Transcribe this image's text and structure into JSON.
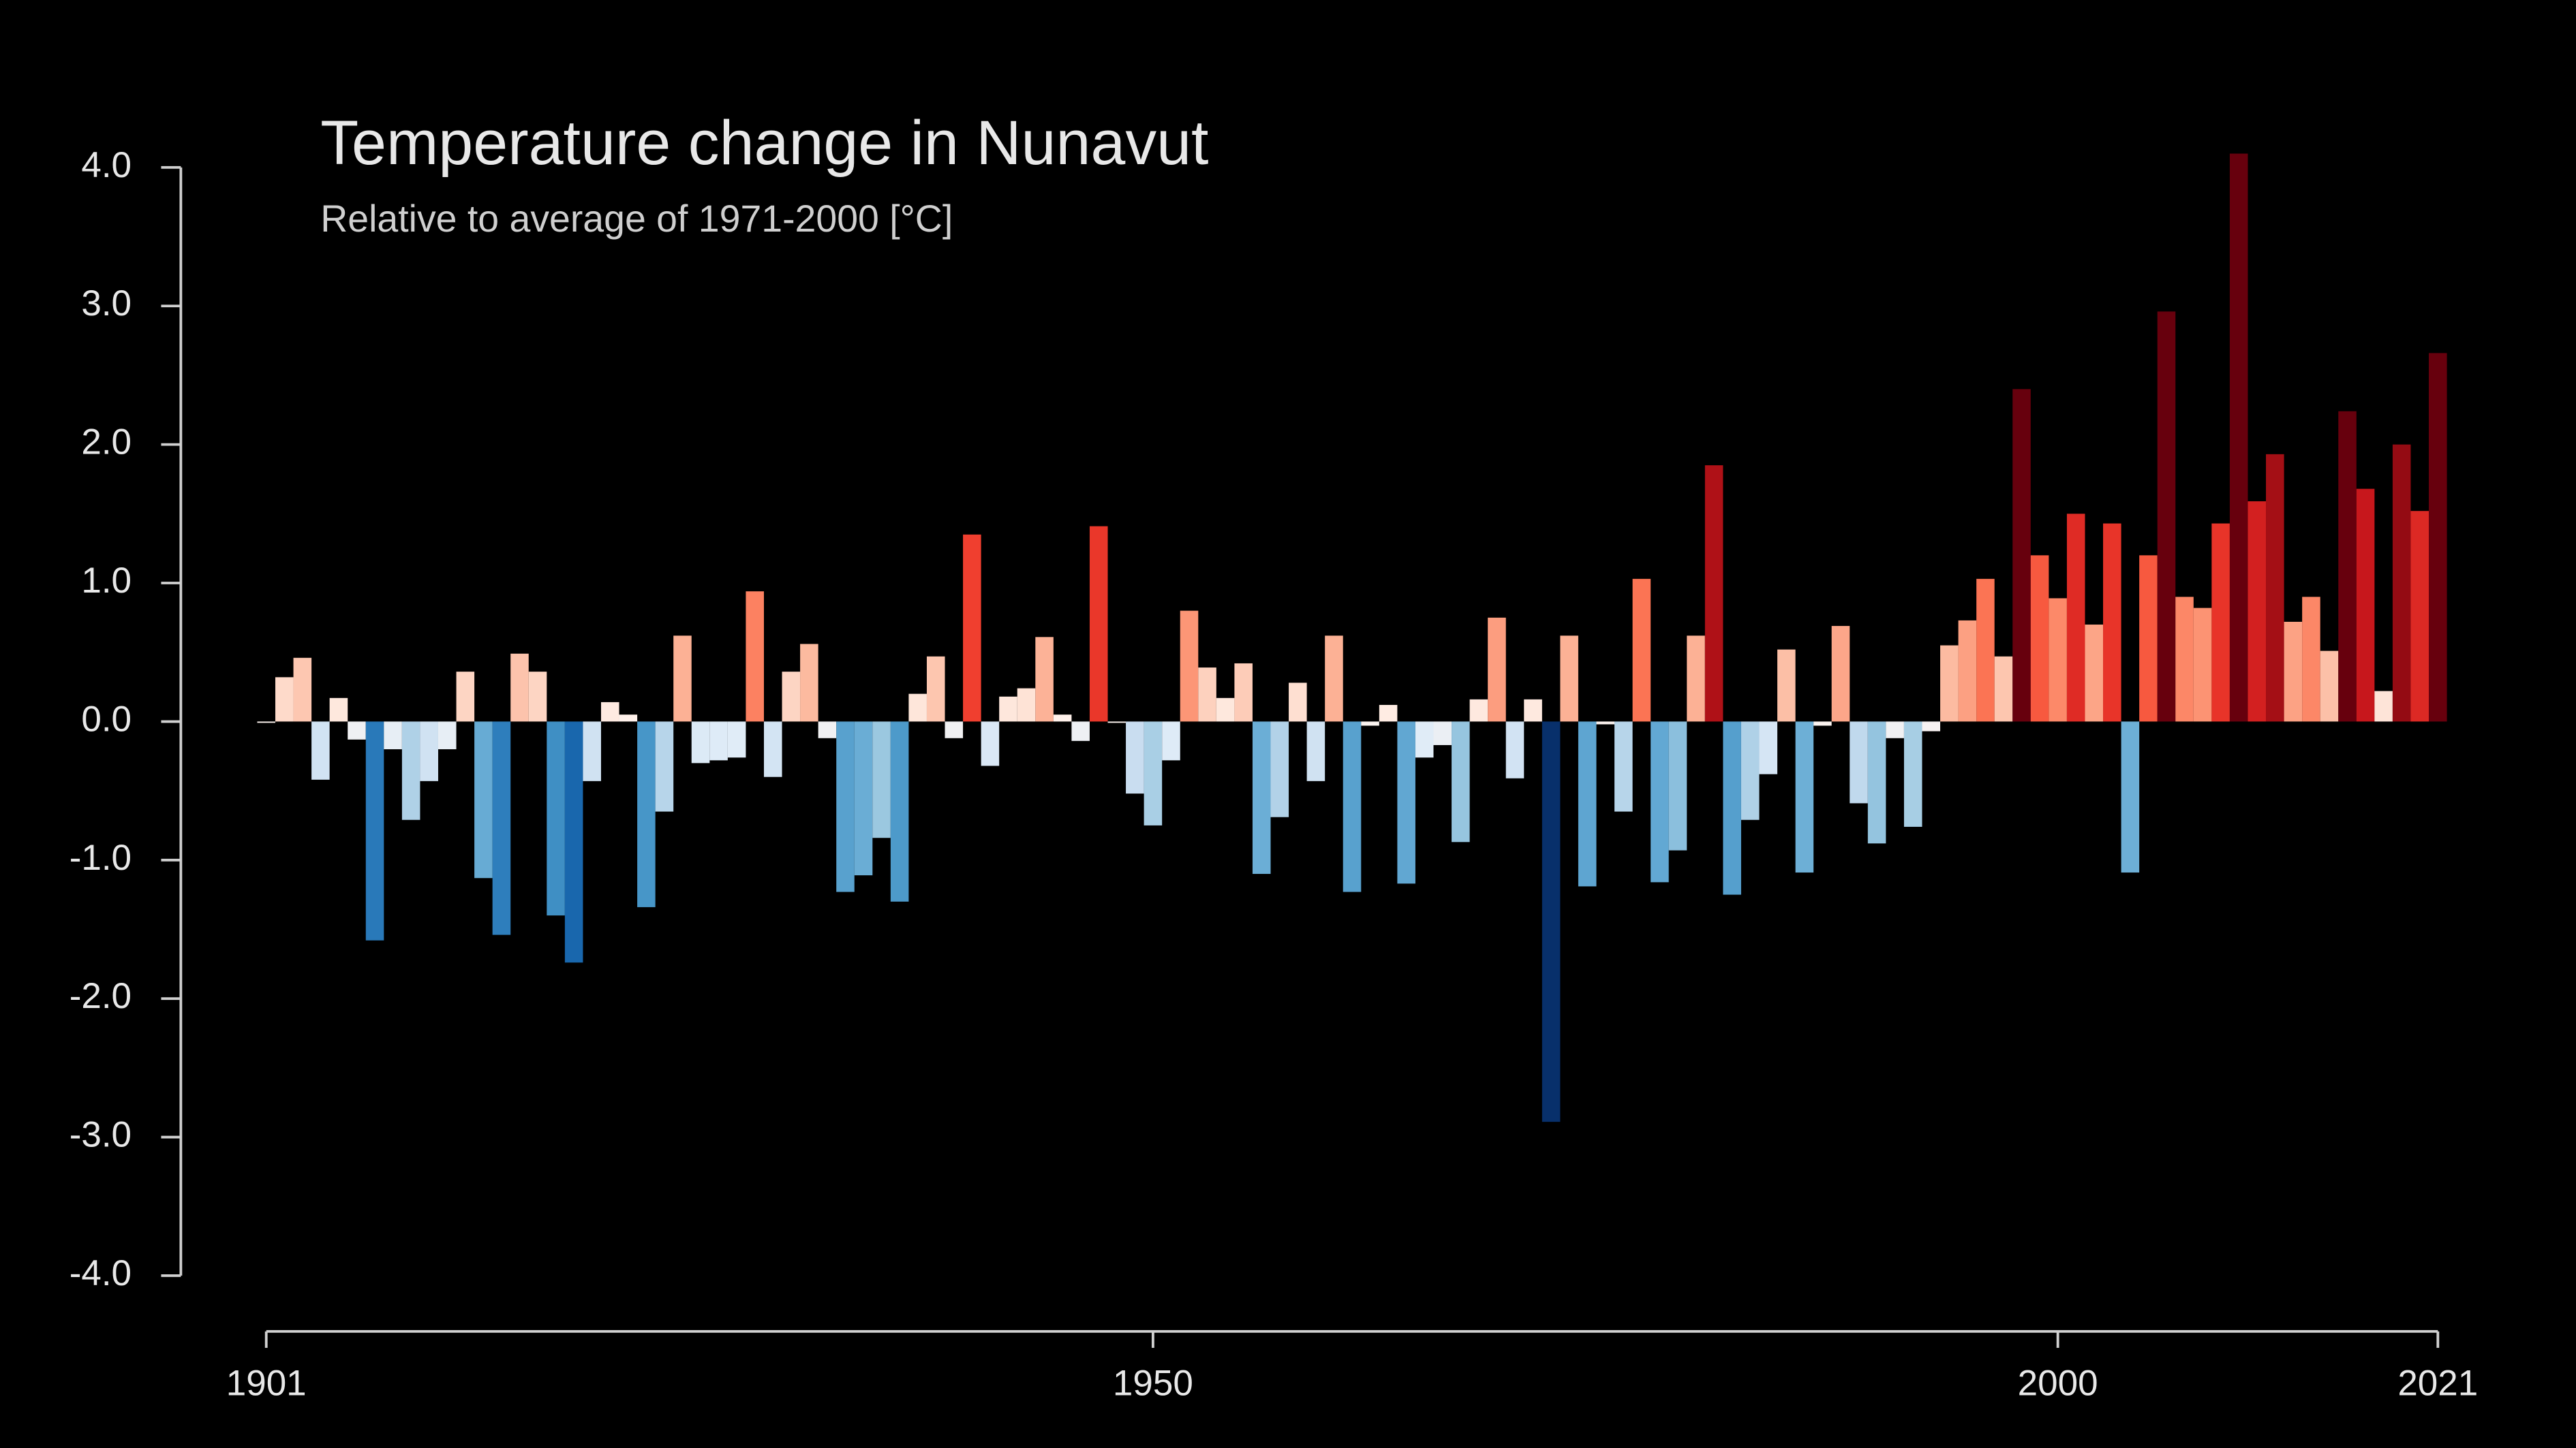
{
  "chart_data": {
    "type": "bar",
    "title": "Temperature change in Nunavut",
    "subtitle": "Relative to average of 1971-2000  [°C]",
    "x": [
      1901,
      1902,
      1903,
      1904,
      1905,
      1906,
      1907,
      1908,
      1909,
      1910,
      1911,
      1912,
      1913,
      1914,
      1915,
      1916,
      1917,
      1918,
      1919,
      1920,
      1921,
      1922,
      1923,
      1924,
      1925,
      1926,
      1927,
      1928,
      1929,
      1930,
      1931,
      1932,
      1933,
      1934,
      1935,
      1936,
      1937,
      1938,
      1939,
      1940,
      1941,
      1942,
      1943,
      1944,
      1945,
      1946,
      1947,
      1948,
      1949,
      1950,
      1951,
      1952,
      1953,
      1954,
      1955,
      1956,
      1957,
      1958,
      1959,
      1960,
      1961,
      1962,
      1963,
      1964,
      1965,
      1966,
      1967,
      1968,
      1969,
      1970,
      1971,
      1972,
      1973,
      1974,
      1975,
      1976,
      1977,
      1978,
      1979,
      1980,
      1981,
      1982,
      1983,
      1984,
      1985,
      1986,
      1987,
      1988,
      1989,
      1990,
      1991,
      1992,
      1993,
      1994,
      1995,
      1996,
      1997,
      1998,
      1999,
      2000,
      2001,
      2002,
      2003,
      2004,
      2005,
      2006,
      2007,
      2008,
      2009,
      2010,
      2011,
      2012,
      2013,
      2014,
      2015,
      2016,
      2017,
      2018,
      2019,
      2020,
      2021
    ],
    "values": [
      0.0,
      0.32,
      0.46,
      -0.42,
      0.17,
      -0.13,
      -1.58,
      -0.2,
      -0.71,
      -0.43,
      -0.2,
      0.36,
      -1.13,
      -1.54,
      0.49,
      0.36,
      -1.4,
      -1.74,
      -0.43,
      0.14,
      0.05,
      -1.34,
      -0.65,
      0.62,
      -0.3,
      -0.28,
      -0.26,
      0.94,
      -0.4,
      0.36,
      0.56,
      -0.12,
      -1.23,
      -1.11,
      -0.84,
      -1.3,
      0.2,
      0.47,
      -0.12,
      1.35,
      -0.32,
      0.18,
      0.24,
      0.61,
      0.05,
      -0.14,
      1.41,
      0.0,
      -0.52,
      -0.75,
      -0.28,
      0.8,
      0.39,
      0.17,
      0.42,
      -1.1,
      -0.69,
      0.28,
      -0.43,
      0.62,
      -1.23,
      -0.03,
      0.12,
      -1.17,
      -0.26,
      -0.17,
      -0.87,
      0.16,
      0.75,
      -0.41,
      0.16,
      -2.89,
      0.62,
      -1.19,
      -0.02,
      -0.65,
      1.03,
      -1.16,
      -0.93,
      0.62,
      1.85,
      -1.25,
      -0.71,
      -0.38,
      0.52,
      -1.09,
      -0.03,
      0.69,
      -0.59,
      -0.88,
      -0.12,
      -0.76,
      -0.07,
      0.55,
      0.73,
      1.03,
      0.47,
      2.4,
      1.2,
      0.89,
      1.5,
      0.7,
      1.43,
      -1.09,
      1.2,
      2.96,
      0.9,
      0.82,
      1.43,
      4.1,
      1.59,
      1.93,
      0.72,
      0.9,
      0.51,
      2.24,
      1.68,
      0.22,
      2.0,
      1.52,
      2.66
    ],
    "colormap": {
      "colors": [
        "#08306b",
        "#08519c",
        "#2171b5",
        "#4292c6",
        "#6baed6",
        "#9ecae1",
        "#c6dbef",
        "#deebf7",
        "#fff5f0",
        "#fee0d2",
        "#fcbba1",
        "#fc9272",
        "#fb6a4a",
        "#ef3b2c",
        "#cb181d",
        "#a50f15",
        "#67000d"
      ],
      "range": [
        -2.2,
        2.2
      ]
    },
    "xlim": [
      1901,
      2021
    ],
    "xticks": [
      1901,
      1950,
      2000,
      2021
    ],
    "ylim": [
      -4,
      4
    ],
    "yticks": [
      {
        "value": 4,
        "label": "4.0"
      },
      {
        "value": 3,
        "label": "3.0"
      },
      {
        "value": 2,
        "label": "2.0"
      },
      {
        "value": 1,
        "label": "1.0"
      },
      {
        "value": 0,
        "label": "0.0"
      },
      {
        "value": -1,
        "label": "-1.0"
      },
      {
        "value": -2,
        "label": "-2.0"
      },
      {
        "value": -3,
        "label": "-3.0"
      },
      {
        "value": -4,
        "label": "-4.0"
      }
    ]
  }
}
